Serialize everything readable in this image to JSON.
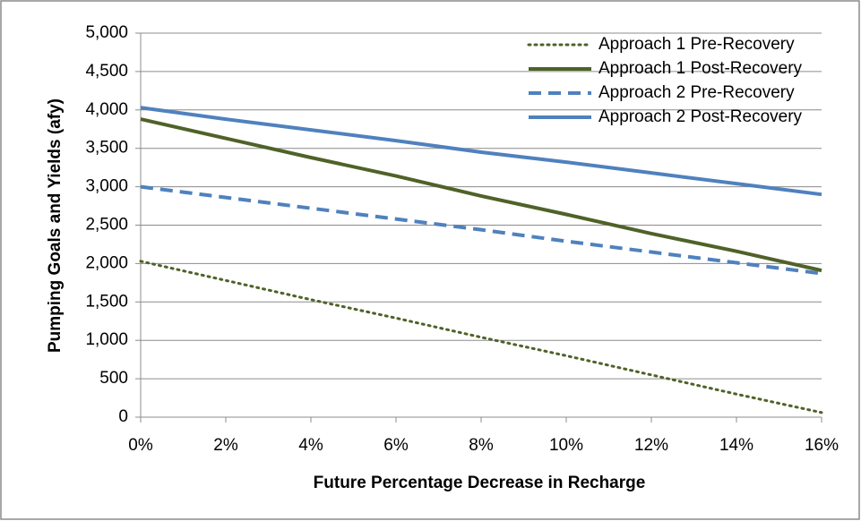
{
  "chart_data": {
    "type": "line",
    "xlabel": "Future Percentage Decrease in Recharge",
    "ylabel": "Pumping Goals and Yields (afy)",
    "x": [
      0,
      2,
      4,
      6,
      8,
      10,
      12,
      14,
      16
    ],
    "xlim": [
      0,
      16
    ],
    "xticks": [
      {
        "value": 0,
        "label": "0%"
      },
      {
        "value": 2,
        "label": "2%"
      },
      {
        "value": 4,
        "label": "4%"
      },
      {
        "value": 6,
        "label": "6%"
      },
      {
        "value": 8,
        "label": "8%"
      },
      {
        "value": 10,
        "label": "10%"
      },
      {
        "value": 12,
        "label": "12%"
      },
      {
        "value": 14,
        "label": "14%"
      },
      {
        "value": 16,
        "label": "16%"
      }
    ],
    "ylim": [
      0,
      5000
    ],
    "yticks": [
      0,
      500,
      {
        "value": 1000,
        "label": "1,000"
      },
      {
        "value": 1500,
        "label": "1,500"
      },
      {
        "value": 2000,
        "label": "2,000"
      },
      {
        "value": 2500,
        "label": "2,500"
      },
      {
        "value": 3000,
        "label": "3,000"
      },
      {
        "value": 3500,
        "label": "3,500"
      },
      {
        "value": 4000,
        "label": "4,000"
      },
      {
        "value": 4500,
        "label": "4,500"
      },
      {
        "value": 5000,
        "label": "5,000"
      }
    ],
    "grid": true,
    "legend": "top-right",
    "series": [
      {
        "name": "Approach 1 Pre-Recovery",
        "color": "#4f6228",
        "style": "dotted",
        "values": [
          2030,
          1780,
          1530,
          1290,
          1040,
          800,
          550,
          300,
          60
        ]
      },
      {
        "name": "Approach 1 Post-Recovery",
        "color": "#4f6228",
        "style": "solid",
        "values": [
          3880,
          3630,
          3380,
          3140,
          2880,
          2640,
          2390,
          2160,
          1910
        ]
      },
      {
        "name": "Approach 2 Pre-Recovery",
        "color": "#4f81bd",
        "style": "dashed",
        "values": [
          3000,
          2860,
          2720,
          2580,
          2440,
          2290,
          2150,
          2010,
          1870
        ]
      },
      {
        "name": "Approach 2 Post-Recovery",
        "color": "#4f81bd",
        "style": "solid",
        "values": [
          4030,
          3880,
          3740,
          3600,
          3450,
          3320,
          3180,
          3040,
          2900
        ]
      }
    ]
  }
}
